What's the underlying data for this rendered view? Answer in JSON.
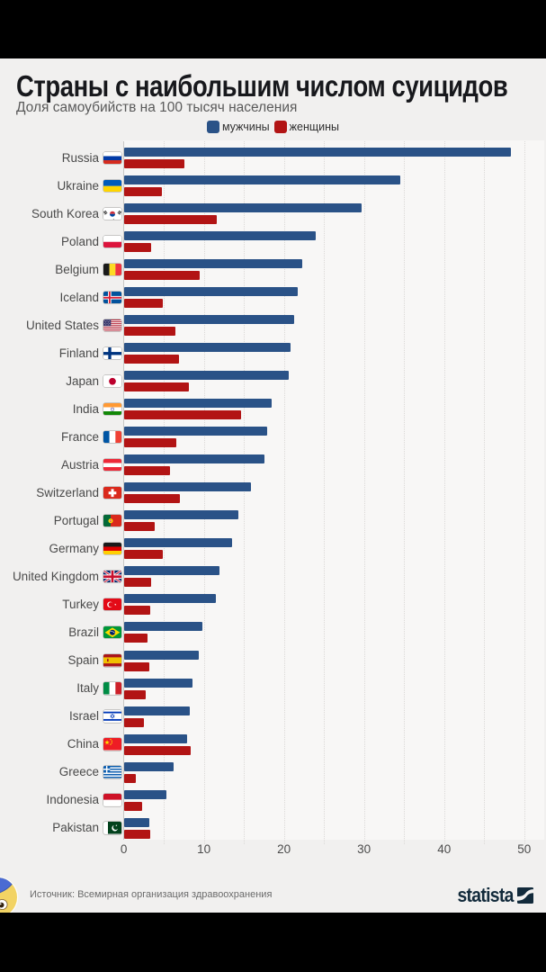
{
  "page": {
    "source_text": "Источник: Всемирная организация здравоохранения",
    "brand": "statista",
    "colors": {
      "letterbox": "#000000",
      "page_bg": "#f1f0ef",
      "plot_bg": "#f8f7f6",
      "men": "#2a5287",
      "women": "#b21414",
      "brand_navy": "#122a3b"
    }
  },
  "chart_data": {
    "type": "bar",
    "orientation": "horizontal",
    "title": "Страны с наибольшим числом суицидов",
    "subtitle": "Доля самоубийств на 100 тысяч населения",
    "legend_position": "top",
    "grid": "dotted-vertical",
    "gridline_step": 5,
    "xlim": [
      0,
      50
    ],
    "xticks": [
      0,
      10,
      20,
      30,
      40,
      50
    ],
    "countries": [
      {
        "name": "Russia",
        "flag": "ru"
      },
      {
        "name": "Ukraine",
        "flag": "ua"
      },
      {
        "name": "South Korea",
        "flag": "kr"
      },
      {
        "name": "Poland",
        "flag": "pl"
      },
      {
        "name": "Belgium",
        "flag": "be"
      },
      {
        "name": "Iceland",
        "flag": "is"
      },
      {
        "name": "United States",
        "flag": "us"
      },
      {
        "name": "Finland",
        "flag": "fi"
      },
      {
        "name": "Japan",
        "flag": "jp"
      },
      {
        "name": "India",
        "flag": "in"
      },
      {
        "name": "France",
        "flag": "fr"
      },
      {
        "name": "Austria",
        "flag": "at"
      },
      {
        "name": "Switzerland",
        "flag": "ch"
      },
      {
        "name": "Portugal",
        "flag": "pt"
      },
      {
        "name": "Germany",
        "flag": "de"
      },
      {
        "name": "United Kingdom",
        "flag": "gb"
      },
      {
        "name": "Turkey",
        "flag": "tr"
      },
      {
        "name": "Brazil",
        "flag": "br"
      },
      {
        "name": "Spain",
        "flag": "es"
      },
      {
        "name": "Italy",
        "flag": "it"
      },
      {
        "name": "Israel",
        "flag": "il"
      },
      {
        "name": "China",
        "flag": "cn"
      },
      {
        "name": "Greece",
        "flag": "gr"
      },
      {
        "name": "Indonesia",
        "flag": "id"
      },
      {
        "name": "Pakistan",
        "flag": "pk"
      }
    ],
    "series": [
      {
        "name": "мужчины",
        "color": "#2a5287",
        "values": [
          48.3,
          34.5,
          29.6,
          23.9,
          22.2,
          21.7,
          21.2,
          20.8,
          20.5,
          18.4,
          17.9,
          17.5,
          15.8,
          14.3,
          13.5,
          11.9,
          11.4,
          9.8,
          9.3,
          8.5,
          8.2,
          7.9,
          6.2,
          5.3,
          3.1
        ]
      },
      {
        "name": "женщины",
        "color": "#b21414",
        "values": [
          7.5,
          4.7,
          11.6,
          3.4,
          9.4,
          4.8,
          6.4,
          6.8,
          8.1,
          14.6,
          6.5,
          5.7,
          7.0,
          3.8,
          4.8,
          3.4,
          3.2,
          2.9,
          3.1,
          2.7,
          2.5,
          8.3,
          1.5,
          2.2,
          3.2
        ]
      }
    ]
  }
}
